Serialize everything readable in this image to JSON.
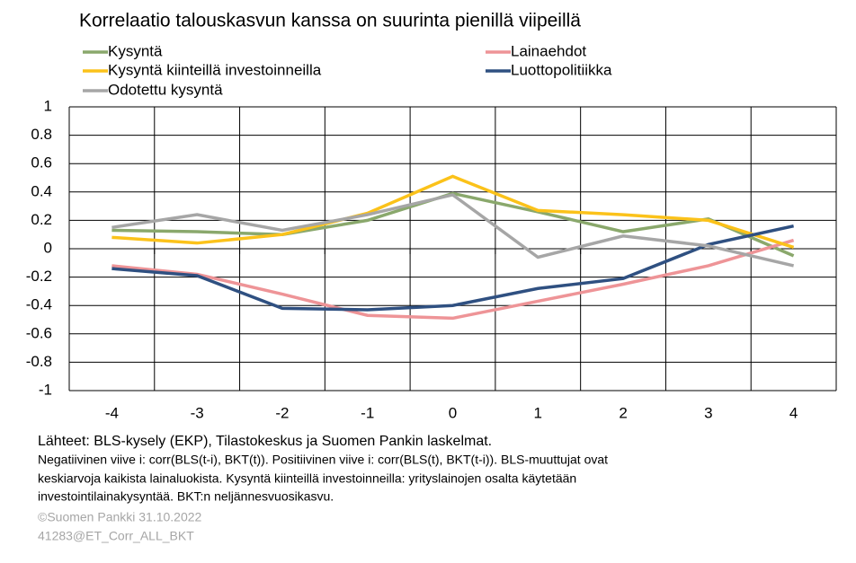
{
  "chart_data": {
    "type": "line",
    "title": "Korrelaatio talouskasvun kanssa on suurinta pienillä viipeillä",
    "categories": [
      "-4",
      "-3",
      "-2",
      "-1",
      "0",
      "1",
      "2",
      "3",
      "4"
    ],
    "series": [
      {
        "name": "Kysyntä",
        "color": "#8aa86c",
        "values": [
          0.13,
          0.12,
          0.1,
          0.2,
          0.39,
          0.26,
          0.12,
          0.21,
          -0.05
        ]
      },
      {
        "name": "Lainaehdot",
        "color": "#ee9497",
        "values": [
          -0.12,
          -0.18,
          -0.32,
          -0.47,
          -0.49,
          -0.37,
          -0.25,
          -0.12,
          0.06
        ]
      },
      {
        "name": "Kysyntä kiinteillä investoinneilla",
        "color": "#fbc21a",
        "values": [
          0.08,
          0.04,
          0.1,
          0.25,
          0.51,
          0.27,
          0.24,
          0.2,
          0.01
        ]
      },
      {
        "name": "Luottopolitiikka",
        "color": "#2f5081",
        "values": [
          -0.14,
          -0.19,
          -0.42,
          -0.43,
          -0.4,
          -0.28,
          -0.21,
          0.03,
          0.16
        ]
      },
      {
        "name": "Odotettu kysyntä",
        "color": "#a6a6a6",
        "values": [
          0.15,
          0.24,
          0.13,
          0.24,
          0.38,
          -0.06,
          0.09,
          0.02,
          -0.12
        ]
      }
    ],
    "ylim": [
      -1,
      1
    ],
    "yticks": [
      1,
      0.8,
      0.6,
      0.4,
      0.2,
      0,
      -0.2,
      -0.4,
      -0.6,
      -0.8,
      -1
    ],
    "grid": true,
    "source": "Lähteet: BLS-kysely (EKP), Tilastokeskus ja Suomen Pankin laskelmat.",
    "note": [
      "Negatiivinen viive i: corr(BLS(t-i), BKT(t)). Positiivinen viive i: corr(BLS(t), BKT(t-i)). BLS-muuttujat ovat",
      "keskiarvoja kaikista lainaluokista. Kysyntä kiinteillä investoinneilla: yrityslainojen osalta käytetään",
      "investointilainakysyntää.  BKT:n neljännesvuosikasvu."
    ],
    "copyright": "©Suomen Pankki 31.10.2022",
    "code": "41283@ET_Corr_ALL_BKT"
  }
}
